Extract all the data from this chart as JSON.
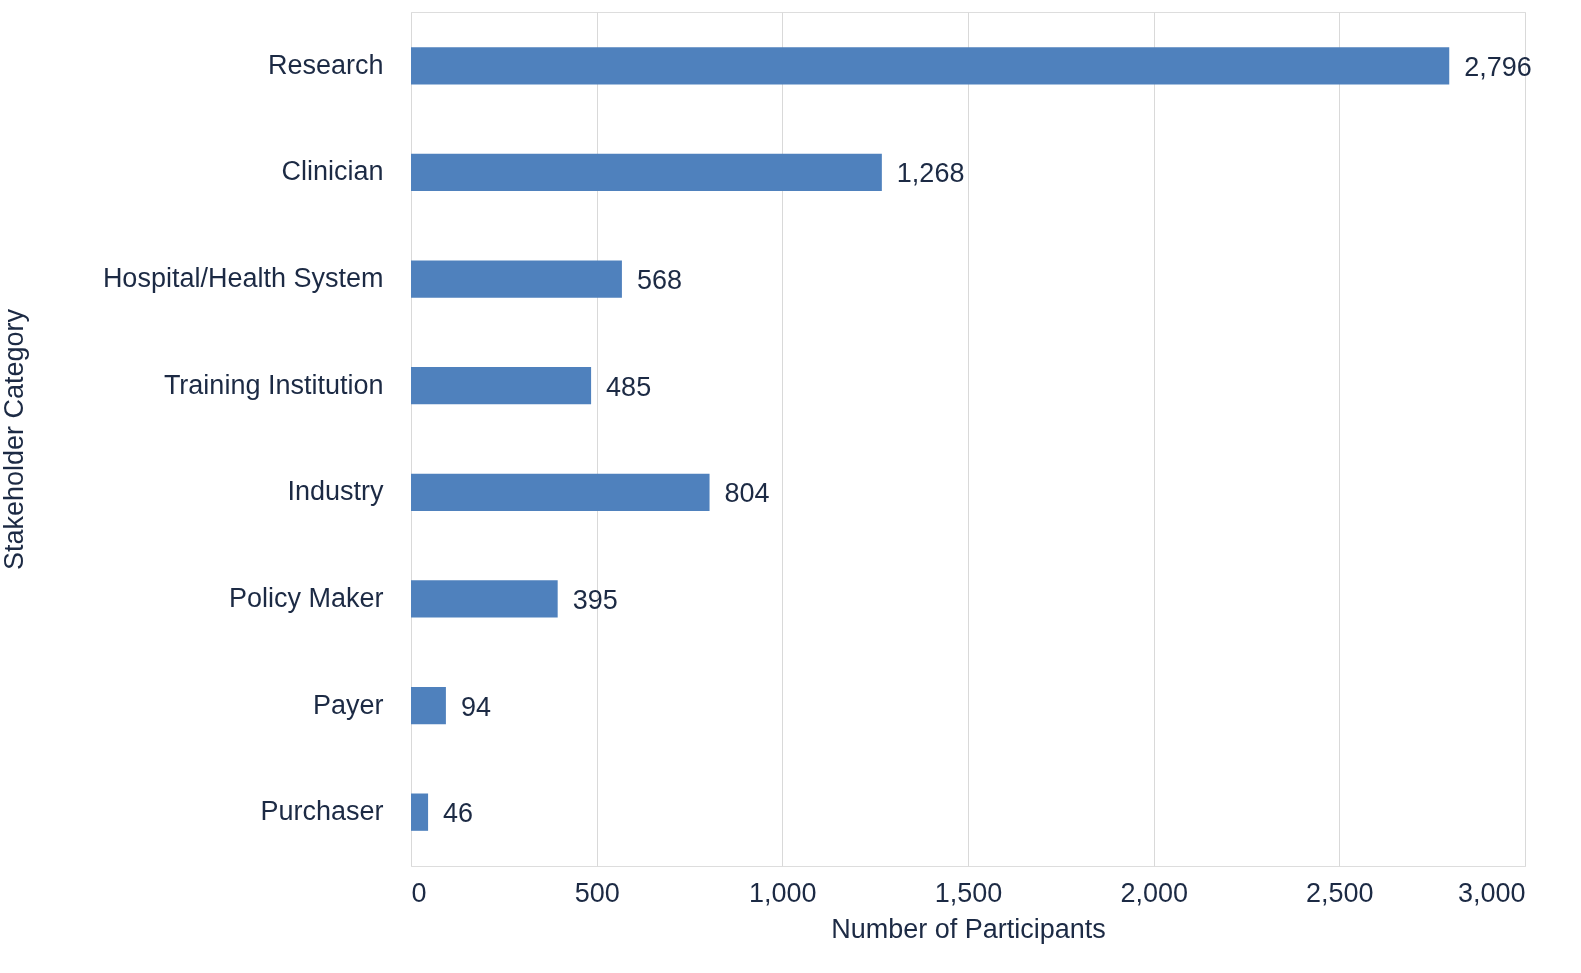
{
  "chart_data": {
    "type": "bar",
    "orientation": "horizontal",
    "xlabel": "Number of Participants",
    "ylabel": "Stakeholder Category",
    "categories": [
      "Research",
      "Clinician",
      "Hospital/Health System",
      "Training Institution",
      "Industry",
      "Policy Maker",
      "Payer",
      "Purchaser"
    ],
    "values": [
      2796,
      1268,
      568,
      485,
      804,
      395,
      94,
      46
    ],
    "value_labels": [
      "2,796",
      "1,268",
      "568",
      "485",
      "804",
      "395",
      "94",
      "46"
    ],
    "color": "#4f81bd",
    "xlim": [
      0,
      3000
    ],
    "xticks": [
      0,
      500,
      {
        "value": 1000,
        "label": "1,000"
      },
      {
        "value": 1500,
        "label": "1,500"
      },
      {
        "value": 2000,
        "label": "2,000"
      },
      {
        "value": 2500,
        "label": "2,500"
      },
      {
        "value": 3000,
        "label": "3,000"
      }
    ],
    "grid": "x"
  }
}
